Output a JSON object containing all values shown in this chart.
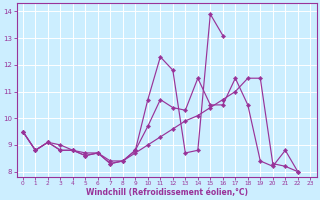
{
  "x": [
    0,
    1,
    2,
    3,
    4,
    5,
    6,
    7,
    8,
    9,
    10,
    11,
    12,
    13,
    14,
    15,
    16,
    17,
    18,
    19,
    20,
    21,
    22,
    23
  ],
  "line_spiky": [
    9.5,
    8.8,
    9.1,
    8.8,
    8.8,
    8.6,
    8.7,
    8.3,
    8.4,
    8.8,
    10.7,
    12.3,
    11.8,
    8.7,
    8.8,
    13.9,
    13.1,
    null,
    null,
    null,
    null,
    null,
    null,
    null
  ],
  "line_mid": [
    9.5,
    8.8,
    9.1,
    8.8,
    8.8,
    8.6,
    8.7,
    8.3,
    8.4,
    8.8,
    9.7,
    10.7,
    10.4,
    10.3,
    11.5,
    10.5,
    10.5,
    11.5,
    10.5,
    8.4,
    8.2,
    8.8,
    8.0,
    null
  ],
  "line_smooth": [
    9.5,
    8.8,
    9.1,
    9.0,
    8.8,
    8.7,
    8.7,
    8.4,
    8.4,
    8.7,
    9.0,
    9.3,
    9.6,
    9.9,
    10.1,
    10.4,
    10.7,
    11.0,
    11.5,
    11.5,
    8.3,
    8.2,
    8.0,
    null
  ],
  "xlim": [
    -0.5,
    23.5
  ],
  "ylim": [
    7.8,
    14.3
  ],
  "yticks": [
    8,
    9,
    10,
    11,
    12,
    13,
    14
  ],
  "xticks": [
    0,
    1,
    2,
    3,
    4,
    5,
    6,
    7,
    8,
    9,
    10,
    11,
    12,
    13,
    14,
    15,
    16,
    17,
    18,
    19,
    20,
    21,
    22,
    23
  ],
  "xlabel": "Windchill (Refroidissement éolien,°C)",
  "color": "#993399",
  "bg_color": "#cceeff",
  "grid_color": "#ffffff"
}
